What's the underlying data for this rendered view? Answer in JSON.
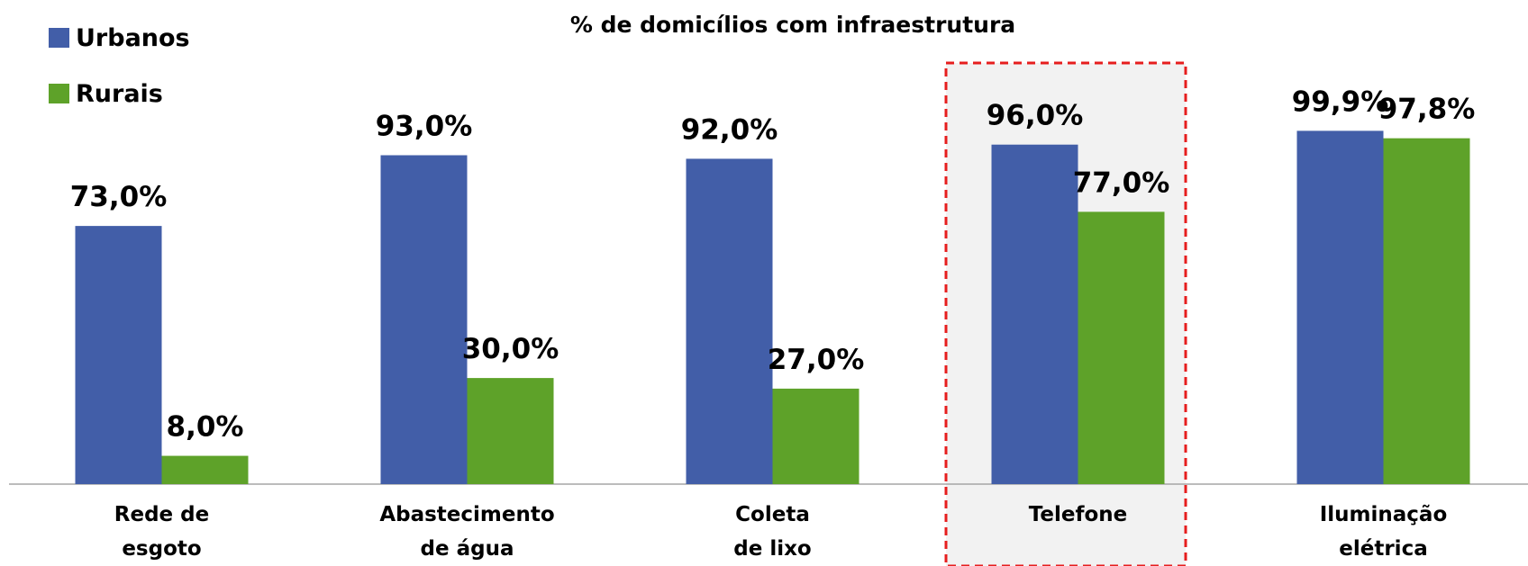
{
  "chart_data": {
    "type": "bar",
    "title": "% de domicílios com infraestrutura",
    "categories": [
      "Rede de\nesgoto",
      "Abastecimento\nde água",
      "Coleta\nde lixo",
      "Telefone",
      "Iluminação\nelétrica"
    ],
    "series": [
      {
        "name": "Urbanos",
        "color": "#425ea8",
        "values": [
          73,
          93,
          92,
          96,
          99.9
        ],
        "value_labels": [
          "73,0%",
          "93,0%",
          "92,0%",
          "96,0%",
          "99,9%"
        ]
      },
      {
        "name": "Rurais",
        "color": "#5ea229",
        "values": [
          8,
          30,
          27,
          77,
          97.8
        ],
        "value_labels": [
          "8,0%",
          "30,0%",
          "27,0%",
          "77,0%",
          "97,8%"
        ]
      }
    ],
    "ylim": [
      0,
      100
    ],
    "legend": "top-left"
  }
}
